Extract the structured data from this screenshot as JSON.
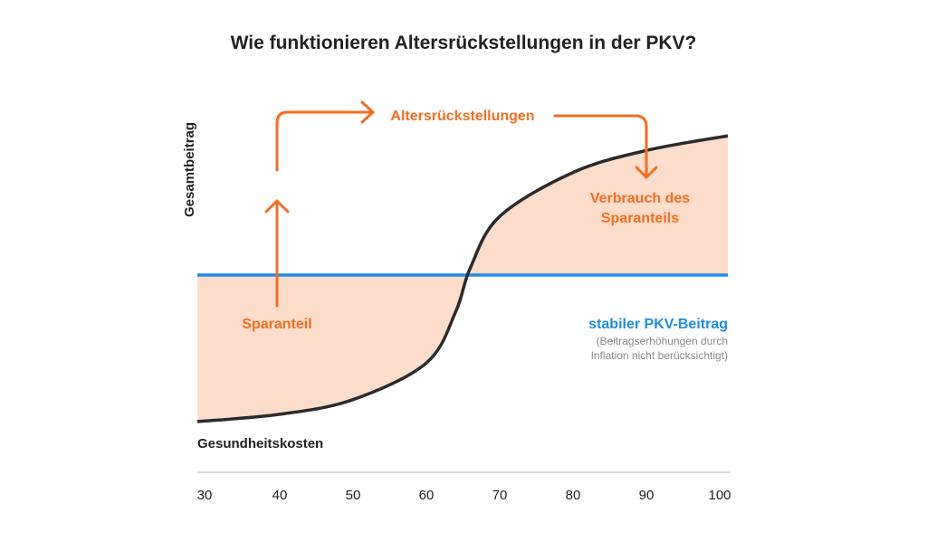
{
  "chart_data": {
    "type": "area",
    "title": "Wie funktionieren Altersrückstellungen in der PKV?",
    "ylabel": "Gesamtbeitrag",
    "xlabel": "",
    "x_ticks": [
      30,
      40,
      50,
      60,
      70,
      80,
      90,
      100
    ],
    "xlim": [
      30,
      102
    ],
    "series": [
      {
        "name": "Gesundheitskosten",
        "x": [
          30,
          40,
          50,
          60,
          64,
          66,
          70,
          80,
          90,
          102
        ],
        "values": [
          0.0,
          0.05,
          0.15,
          0.4,
          0.75,
          1.05,
          1.4,
          1.7,
          1.85,
          1.95
        ]
      },
      {
        "name": "stabiler PKV-Beitrag",
        "x": [
          30,
          102
        ],
        "values": [
          1.0,
          1.0
        ]
      }
    ],
    "annotations": {
      "saving": "Sparanteil",
      "reserves": "Altersrückstellungen",
      "consumption_line1": "Verbrauch des",
      "consumption_line2": "Sparanteils",
      "premium_note_line1": "(Beitragserhöhungen durch",
      "premium_note_line2": "Inflation nicht berücksichtigt)"
    },
    "colors": {
      "costs_line": "#2b2b2b",
      "premium_line": "#1e8ce6",
      "fill": "#fcdccb",
      "arrows": "#f26e21",
      "axis": "#cccccc"
    },
    "grid": false,
    "legend": "none"
  }
}
